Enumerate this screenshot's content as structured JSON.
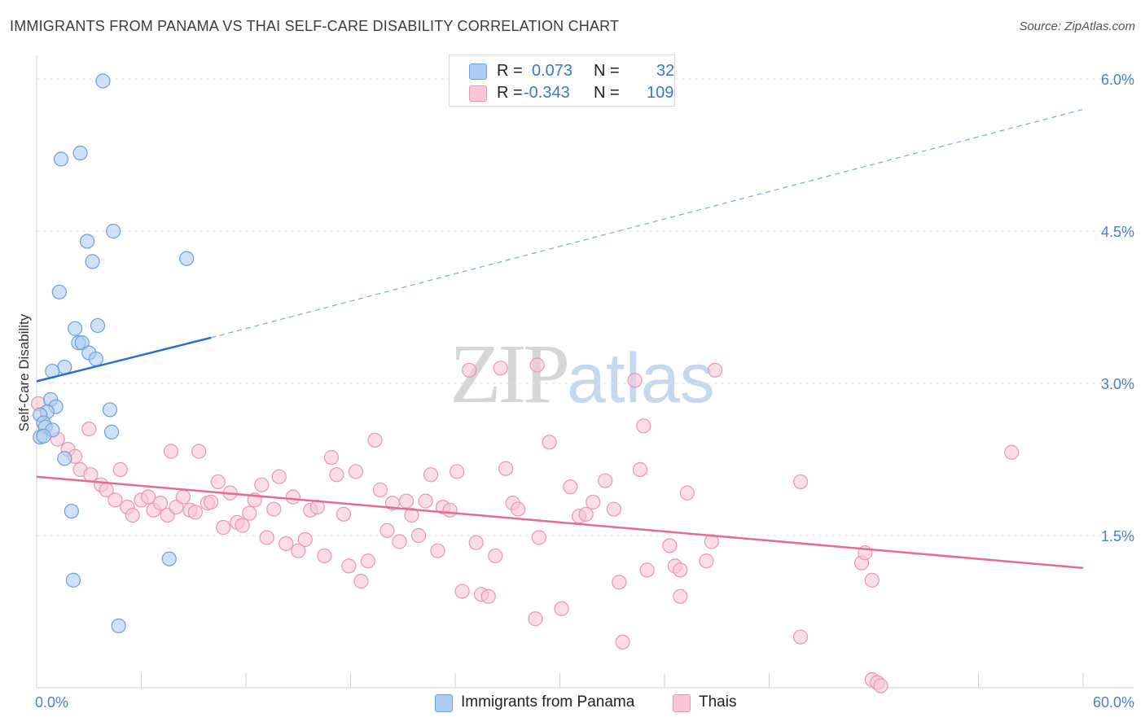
{
  "title": "IMMIGRANTS FROM PANAMA VS THAI SELF-CARE DISABILITY CORRELATION CHART",
  "source": "Source: ZipAtlas.com",
  "watermark": {
    "zip": "ZIP",
    "atlas": "atlas"
  },
  "legend": {
    "r_label": "R =",
    "n_label": "N =",
    "rows": [
      {
        "r": "0.073",
        "n": "32",
        "fill": "#aecdf2",
        "stroke": "#6d9fdc"
      },
      {
        "r": "-0.343",
        "n": "109",
        "fill": "#f8c6d5",
        "stroke": "#e996b2"
      }
    ]
  },
  "bottom_legend": [
    {
      "label": "Immigrants from Panama",
      "fill": "#aecdf2",
      "stroke": "#6d9fdc"
    },
    {
      "label": "Thais",
      "fill": "#f8c6d5",
      "stroke": "#e996b2"
    }
  ],
  "chart_data": {
    "type": "scatter",
    "xlabel": "",
    "ylabel": "Self-Care Disability",
    "xlim": [
      0,
      60
    ],
    "ylim": [
      0,
      6.4
    ],
    "x_tick_labels": [
      "0.0%",
      "60.0%"
    ],
    "y_ticks": [
      1.5,
      3.0,
      4.5,
      6.0
    ],
    "y_tick_labels": [
      "1.5%",
      "3.0%",
      "4.5%",
      "6.0%"
    ],
    "grid": true,
    "series": [
      {
        "name": "Immigrants from Panama",
        "color": "#6d9fdc",
        "fill": "#aecdf2",
        "r": 0.073,
        "n": 32,
        "trend": {
          "x0": 0,
          "y0": 3.02,
          "x1": 10,
          "y1": 3.45,
          "x_dash_end": 60,
          "y_dash_end": 5.7,
          "color": "#2c6fcc"
        },
        "points": [
          [
            3.8,
            5.98
          ],
          [
            1.4,
            5.21
          ],
          [
            2.5,
            5.27
          ],
          [
            4.4,
            4.5
          ],
          [
            2.9,
            4.4
          ],
          [
            3.2,
            4.2
          ],
          [
            8.6,
            4.23
          ],
          [
            1.3,
            3.9
          ],
          [
            2.2,
            3.54
          ],
          [
            3.5,
            3.57
          ],
          [
            2.4,
            3.4
          ],
          [
            2.6,
            3.4
          ],
          [
            3.0,
            3.3
          ],
          [
            3.4,
            3.24
          ],
          [
            1.6,
            3.16
          ],
          [
            0.9,
            3.12
          ],
          [
            0.8,
            2.84
          ],
          [
            1.1,
            2.77
          ],
          [
            0.6,
            2.72
          ],
          [
            4.2,
            2.74
          ],
          [
            0.2,
            2.69
          ],
          [
            0.4,
            2.61
          ],
          [
            0.5,
            2.57
          ],
          [
            0.9,
            2.54
          ],
          [
            4.3,
            2.52
          ],
          [
            0.2,
            2.47
          ],
          [
            0.4,
            2.48
          ],
          [
            1.6,
            2.26
          ],
          [
            2.0,
            1.74
          ],
          [
            7.6,
            1.27
          ],
          [
            2.1,
            1.06
          ],
          [
            4.7,
            0.61
          ]
        ]
      },
      {
        "name": "Thais",
        "color": "#e996b2",
        "fill": "#f8c6d5",
        "r": -0.343,
        "n": 109,
        "trend": {
          "x0": 0,
          "y0": 2.08,
          "x1": 60,
          "y1": 1.18,
          "color": "#e26b97"
        },
        "points": [
          [
            0.1,
            2.8
          ],
          [
            1.2,
            2.45
          ],
          [
            1.8,
            2.35
          ],
          [
            2.2,
            2.28
          ],
          [
            2.5,
            2.15
          ],
          [
            3.1,
            2.1
          ],
          [
            3.0,
            2.55
          ],
          [
            3.7,
            2.0
          ],
          [
            4.0,
            1.95
          ],
          [
            4.5,
            1.85
          ],
          [
            4.8,
            2.15
          ],
          [
            5.2,
            1.78
          ],
          [
            5.5,
            1.7
          ],
          [
            6.0,
            1.85
          ],
          [
            6.4,
            1.88
          ],
          [
            6.7,
            1.75
          ],
          [
            7.1,
            1.82
          ],
          [
            7.5,
            1.7
          ],
          [
            7.7,
            2.33
          ],
          [
            8.0,
            1.78
          ],
          [
            8.4,
            1.88
          ],
          [
            8.8,
            1.75
          ],
          [
            9.1,
            1.73
          ],
          [
            9.3,
            2.33
          ],
          [
            9.8,
            1.82
          ],
          [
            10.0,
            1.83
          ],
          [
            10.4,
            2.03
          ],
          [
            10.7,
            1.58
          ],
          [
            11.1,
            1.92
          ],
          [
            11.5,
            1.63
          ],
          [
            11.8,
            1.6
          ],
          [
            12.2,
            1.72
          ],
          [
            12.5,
            1.85
          ],
          [
            12.9,
            2.0
          ],
          [
            13.2,
            1.48
          ],
          [
            13.6,
            1.76
          ],
          [
            13.9,
            2.08
          ],
          [
            14.3,
            1.42
          ],
          [
            14.7,
            1.88
          ],
          [
            15.0,
            1.35
          ],
          [
            15.4,
            1.46
          ],
          [
            15.7,
            1.75
          ],
          [
            16.1,
            1.78
          ],
          [
            16.5,
            1.3
          ],
          [
            16.9,
            2.27
          ],
          [
            17.2,
            2.1
          ],
          [
            17.6,
            1.71
          ],
          [
            17.9,
            1.2
          ],
          [
            18.3,
            2.13
          ],
          [
            18.6,
            1.05
          ],
          [
            19.0,
            1.25
          ],
          [
            19.4,
            2.44
          ],
          [
            19.7,
            1.95
          ],
          [
            20.1,
            1.55
          ],
          [
            20.4,
            1.82
          ],
          [
            20.8,
            1.44
          ],
          [
            21.2,
            1.84
          ],
          [
            21.5,
            1.7
          ],
          [
            21.9,
            1.5
          ],
          [
            22.3,
            1.84
          ],
          [
            22.6,
            2.1
          ],
          [
            23.0,
            1.35
          ],
          [
            23.3,
            1.78
          ],
          [
            23.7,
            1.75
          ],
          [
            24.1,
            2.13
          ],
          [
            24.4,
            0.95
          ],
          [
            24.8,
            3.13
          ],
          [
            25.2,
            1.43
          ],
          [
            25.5,
            0.92
          ],
          [
            25.9,
            0.9
          ],
          [
            26.3,
            1.3
          ],
          [
            26.6,
            3.15
          ],
          [
            26.9,
            2.16
          ],
          [
            27.3,
            1.82
          ],
          [
            27.6,
            1.76
          ],
          [
            28.7,
            3.18
          ],
          [
            28.6,
            0.68
          ],
          [
            28.8,
            1.48
          ],
          [
            29.4,
            2.42
          ],
          [
            30.1,
            0.78
          ],
          [
            30.6,
            1.98
          ],
          [
            31.1,
            1.69
          ],
          [
            31.5,
            1.71
          ],
          [
            31.9,
            1.83
          ],
          [
            32.6,
            2.04
          ],
          [
            33.1,
            1.76
          ],
          [
            33.4,
            1.04
          ],
          [
            33.6,
            0.45
          ],
          [
            34.3,
            3.03
          ],
          [
            34.6,
            2.15
          ],
          [
            34.8,
            2.58
          ],
          [
            35.0,
            1.16
          ],
          [
            36.3,
            1.4
          ],
          [
            36.6,
            1.2
          ],
          [
            36.9,
            1.16
          ],
          [
            36.9,
            0.9
          ],
          [
            37.3,
            1.92
          ],
          [
            38.4,
            1.25
          ],
          [
            38.7,
            1.44
          ],
          [
            38.9,
            3.13
          ],
          [
            43.8,
            2.03
          ],
          [
            43.8,
            0.5
          ],
          [
            47.3,
            1.23
          ],
          [
            47.5,
            1.33
          ],
          [
            47.9,
            1.06
          ],
          [
            47.9,
            0.08
          ],
          [
            48.2,
            0.05
          ],
          [
            48.4,
            0.02
          ],
          [
            55.9,
            2.32
          ]
        ]
      }
    ]
  }
}
